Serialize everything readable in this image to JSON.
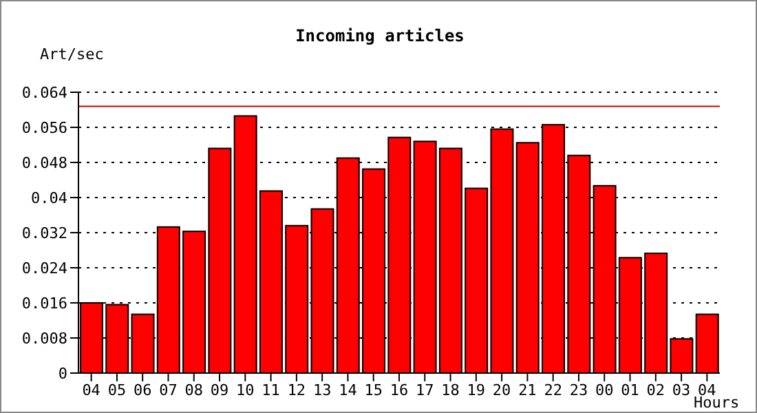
{
  "chart_data": {
    "type": "bar",
    "title": "Incoming articles",
    "ylabel": "Art/sec",
    "xlabel": "Hours",
    "categories": [
      "04",
      "05",
      "06",
      "07",
      "08",
      "09",
      "10",
      "11",
      "12",
      "13",
      "14",
      "15",
      "16",
      "17",
      "18",
      "19",
      "20",
      "21",
      "22",
      "23",
      "00",
      "01",
      "02",
      "03",
      "04"
    ],
    "values": [
      0.016,
      0.0156,
      0.0134,
      0.0333,
      0.0323,
      0.0512,
      0.0586,
      0.0415,
      0.0336,
      0.0374,
      0.049,
      0.0465,
      0.0537,
      0.0528,
      0.0512,
      0.0421,
      0.0556,
      0.0525,
      0.0566,
      0.0496,
      0.0427,
      0.0263,
      0.0273,
      0.0078,
      0.0134
    ],
    "color": "#ff0000",
    "ylim": [
      0,
      0.064
    ],
    "yticks": [
      0,
      0.008,
      0.016,
      0.024,
      0.032,
      0.04,
      0.048,
      0.056,
      0.064
    ],
    "grid": "y",
    "ref_lines": [
      {
        "axis": "y",
        "value": 0.0608,
        "color": "#cc0000"
      }
    ]
  }
}
